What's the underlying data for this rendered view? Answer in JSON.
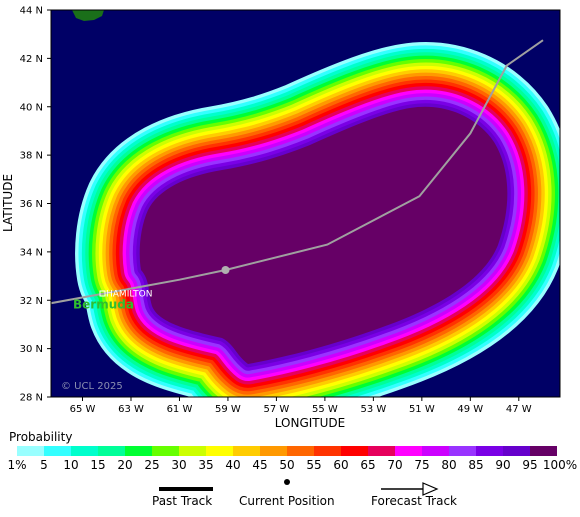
{
  "map": {
    "xlabel": "LONGITUDE",
    "ylabel": "LATITUDE",
    "lat_ticks": [
      "44 N",
      "42 N",
      "40 N",
      "38 N",
      "36 N",
      "34 N",
      "32 N",
      "30 N",
      "28 N"
    ],
    "lon_ticks": [
      "65 W",
      "63 W",
      "61 W",
      "59 W",
      "57 W",
      "55 W",
      "53 W",
      "51 W",
      "49 W",
      "47 W"
    ],
    "place_label": "HAMILTON",
    "island_label": "Bermuda",
    "credit": "© UCL 2025",
    "current_position": {
      "lon": -59.1,
      "lat": 32.2
    },
    "track": [
      {
        "lon": -67.0,
        "lat": 31.75
      },
      {
        "lon": -61.0,
        "lat": 32.85
      },
      {
        "lon": -59.1,
        "lat": 33.25
      },
      {
        "lon": -54.9,
        "lat": 34.3
      },
      {
        "lon": -51.1,
        "lat": 36.3
      },
      {
        "lon": -49.0,
        "lat": 38.9
      },
      {
        "lon": -47.5,
        "lat": 41.7
      },
      {
        "lon": -46.0,
        "lat": 42.75
      }
    ]
  },
  "colors": {
    "ocean": "#000066",
    "land": "#1a6f1a",
    "track": "#a0a0a0"
  },
  "probability": {
    "title": "Probability",
    "labels": [
      "1%",
      "5",
      "10",
      "15",
      "20",
      "25",
      "30",
      "35",
      "40",
      "45",
      "50",
      "55",
      "60",
      "65",
      "70",
      "75",
      "80",
      "85",
      "90",
      "95",
      "100%"
    ],
    "colors": [
      "#99ffff",
      "#33ffff",
      "#00ffcc",
      "#00ff99",
      "#00ff33",
      "#66ff00",
      "#ccff00",
      "#ffff00",
      "#ffcc00",
      "#ff9900",
      "#ff6600",
      "#ff3300",
      "#ff0000",
      "#e6005c",
      "#ff00ff",
      "#cc00ff",
      "#9933ff",
      "#7a00e6",
      "#6600cc",
      "#660066"
    ]
  },
  "legend": {
    "past_track": "Past Track",
    "current_position": "Current Position",
    "forecast_track": "Forecast Track"
  }
}
